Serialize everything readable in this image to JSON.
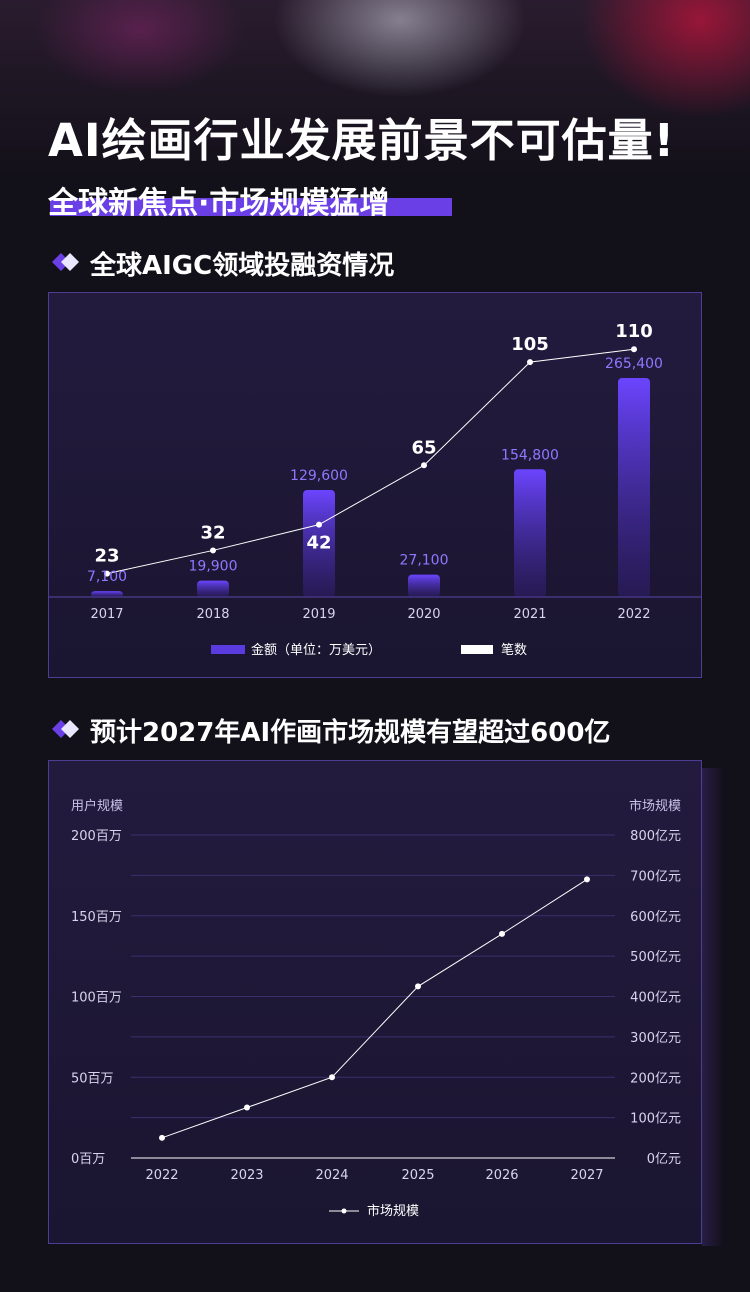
{
  "header": {
    "title": "AI绘画行业发展前景不可估量!",
    "subtitle": "全球新焦点·市场规模猛增"
  },
  "section1": {
    "title": "全球AIGC领域投融资情况"
  },
  "section2": {
    "title": "预计2027年AI作画市场规模有望超过600亿"
  },
  "colors": {
    "accent": "#6a3fe6",
    "bar": "#5a3be0",
    "line": "#ffffff",
    "panel_border": "#4d3d93"
  },
  "chart_data": [
    {
      "type": "bar",
      "categories": [
        "2017",
        "2018",
        "2019",
        "2020",
        "2021",
        "2022"
      ],
      "series": [
        {
          "name": "金额（单位：万美元）",
          "type": "bar",
          "values": [
            7100,
            19900,
            129600,
            27100,
            154800,
            265400
          ],
          "labels": [
            "7,100",
            "19,900",
            "129,600",
            "27,100",
            "154,800",
            "265,400"
          ]
        },
        {
          "name": "笔数",
          "type": "line",
          "values": [
            23,
            32,
            42,
            65,
            105,
            110
          ],
          "labels": [
            "23",
            "32",
            "42",
            "65",
            "105",
            "110"
          ]
        }
      ],
      "legend": {
        "position": "bottom",
        "items": [
          "金额（单位：万美元）",
          "笔数"
        ]
      }
    },
    {
      "type": "line",
      "x": [
        "2022",
        "2023",
        "2024",
        "2025",
        "2026",
        "2027"
      ],
      "series": [
        {
          "name": "市场规模",
          "axis": "right",
          "values": [
            50,
            125,
            200,
            425,
            555,
            690
          ]
        }
      ],
      "y_left": {
        "title": "用户规模",
        "ylim": [
          0,
          200
        ],
        "ticks": [
          "0百万",
          "50百万",
          "100百万",
          "150百万",
          "200百万"
        ]
      },
      "y_right": {
        "title": "市场规模",
        "ylim": [
          0,
          800
        ],
        "ticks": [
          "0亿元",
          "100亿元",
          "200亿元",
          "300亿元",
          "400亿元",
          "500亿元",
          "600亿元",
          "700亿元",
          "800亿元"
        ]
      },
      "legend": {
        "position": "bottom",
        "items": [
          "市场规模"
        ]
      },
      "grid": true
    }
  ]
}
